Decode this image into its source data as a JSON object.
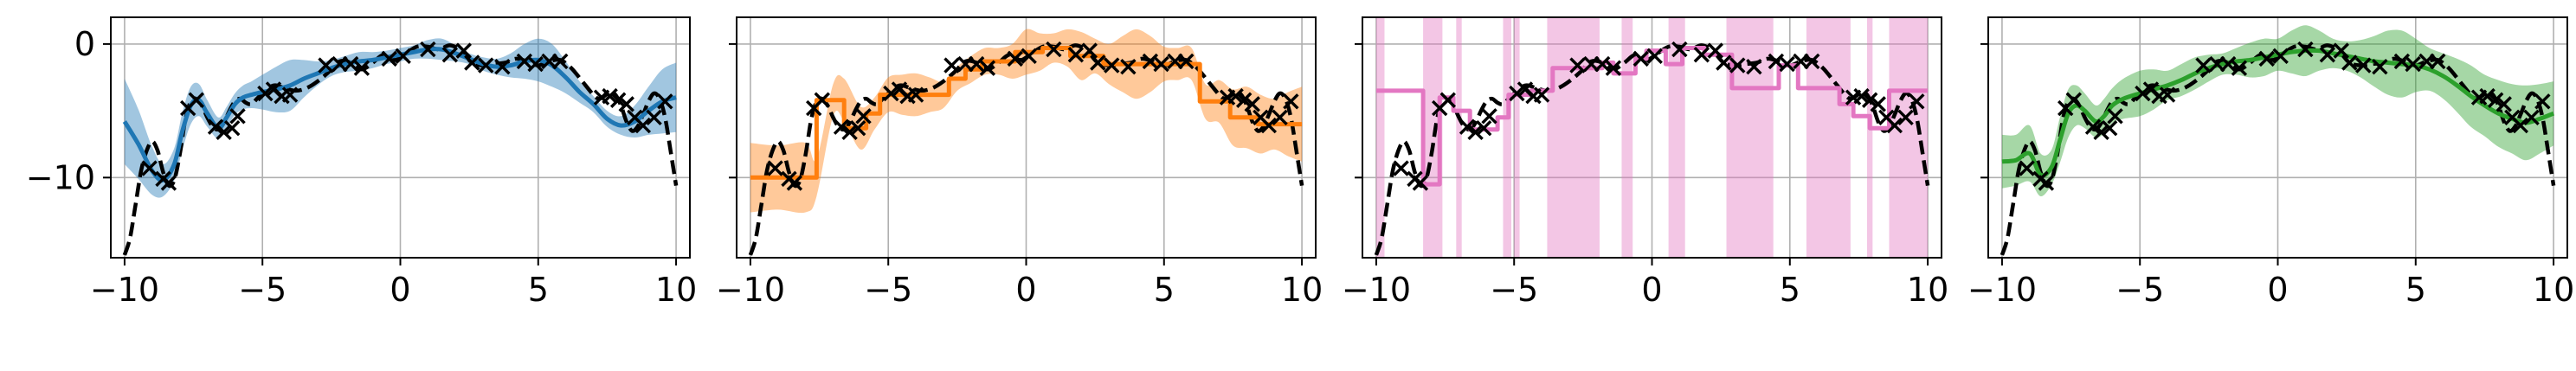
{
  "chart_data": [
    {
      "type": "line",
      "xlim": [
        -10.5,
        10.5
      ],
      "ylim": [
        -16,
        2
      ],
      "xticks": [
        -10,
        -5,
        0,
        5,
        10
      ],
      "yticks": [
        0,
        -10
      ],
      "grid": true,
      "show_yticklabels": true,
      "color": "#1f77b4",
      "band_color": "#1f77b4",
      "prediction": {
        "x": [
          -10,
          -9.5,
          -9,
          -8.6,
          -8.2,
          -7.9,
          -7.6,
          -7.3,
          -7,
          -6.6,
          -6.3,
          -6,
          -5.7,
          -5.4,
          -5,
          -4.5,
          -4,
          -3.5,
          -3,
          -2.5,
          -2,
          -1.5,
          -1,
          -0.5,
          0,
          0.5,
          1,
          1.5,
          2,
          2.5,
          3,
          3.5,
          4,
          4.5,
          5,
          5.5,
          6,
          6.5,
          7,
          7.5,
          8,
          8.5,
          9,
          9.5,
          10
        ],
        "y": [
          -5.8,
          -7.5,
          -9.5,
          -10.2,
          -9,
          -6.5,
          -4.6,
          -4.2,
          -5.2,
          -6.3,
          -5.5,
          -4.5,
          -4,
          -3.8,
          -3.6,
          -3.4,
          -3.1,
          -2.6,
          -2.2,
          -1.8,
          -1.5,
          -1.3,
          -1.2,
          -1,
          -0.8,
          -0.6,
          -0.4,
          -0.4,
          -0.7,
          -1.1,
          -1.5,
          -1.7,
          -1.6,
          -1.3,
          -1.2,
          -1.6,
          -2.5,
          -3.6,
          -4.5,
          -5.6,
          -6.1,
          -5.8,
          -5,
          -4.3,
          -4
        ]
      },
      "band_halfwidth": [
        3.2,
        2.6,
        1.8,
        1.2,
        1.2,
        1.4,
        1.4,
        1.2,
        1,
        0.8,
        0.8,
        0.8,
        0.9,
        1,
        1.3,
        1.7,
        1.9,
        1.4,
        0.9,
        0.6,
        0.6,
        0.7,
        0.6,
        0.5,
        0.5,
        0.5,
        0.7,
        0.8,
        0.6,
        0.4,
        0.5,
        0.6,
        0.9,
        1.3,
        1.6,
        1.6,
        1.2,
        0.8,
        0.6,
        0.6,
        0.7,
        1.2,
        1.8,
        2.4,
        2.6
      ]
    },
    {
      "type": "line",
      "xlim": [
        -10.5,
        10.5
      ],
      "ylim": [
        -16,
        2
      ],
      "xticks": [
        -10,
        -5,
        0,
        5,
        10
      ],
      "yticks": [
        0,
        -10
      ],
      "grid": true,
      "show_yticklabels": false,
      "color": "#ff7f0e",
      "band_color": "#ff7f0e",
      "prediction": {
        "x": [
          -10,
          -7.6,
          -7.6,
          -6.6,
          -6.6,
          -5.8,
          -5.8,
          -5.3,
          -5.3,
          -2.8,
          -2.8,
          -2.2,
          -2.2,
          -1.6,
          -1.6,
          -0.4,
          -0.4,
          0.6,
          0.6,
          1.6,
          1.6,
          2.8,
          2.8,
          6.3,
          6.3,
          7.4,
          7.4,
          8.4,
          8.4,
          10
        ],
        "y": [
          -10,
          -10,
          -4.2,
          -4.2,
          -6.3,
          -6.3,
          -5.2,
          -5.2,
          -3.8,
          -3.8,
          -2.6,
          -2.6,
          -1.9,
          -1.9,
          -1.3,
          -1.3,
          -0.6,
          -0.6,
          -0.3,
          -0.3,
          -0.9,
          -0.9,
          -1.5,
          -1.5,
          -4.3,
          -4.3,
          -5.5,
          -5.5,
          -6,
          -6
        ]
      },
      "band": {
        "x": [
          -10,
          -9,
          -8,
          -7.6,
          -7,
          -6.6,
          -6,
          -5.5,
          -5,
          -4.5,
          -4,
          -3.5,
          -3,
          -2.5,
          -2,
          -1.5,
          -1,
          -0.5,
          0,
          0.5,
          1,
          1.5,
          2,
          2.5,
          3,
          3.5,
          4,
          4.5,
          5,
          5.5,
          6,
          6.5,
          7,
          7.5,
          8,
          8.5,
          9,
          9.5,
          10
        ],
        "halfwidth": [
          2.6,
          2.4,
          2.6,
          1.4,
          1.2,
          1.6,
          1.6,
          1.2,
          1.3,
          1.5,
          1.6,
          1.3,
          1,
          0.9,
          1,
          1,
          1,
          1.3,
          1.7,
          1.4,
          1.1,
          1.4,
          1.8,
          1.3,
          1.5,
          2.1,
          2.6,
          2.1,
          1.3,
          1.2,
          1.2,
          1.3,
          1.6,
          2.1,
          2.3,
          2.2,
          1.9,
          2.4,
          2.8
        ]
      }
    },
    {
      "type": "line",
      "xlim": [
        -10.5,
        10.5
      ],
      "ylim": [
        -16,
        2
      ],
      "xticks": [
        -10,
        -5,
        0,
        5,
        10
      ],
      "yticks": [
        0,
        -10
      ],
      "grid": true,
      "show_yticklabels": false,
      "color": "#e377c2",
      "band_color": "#e377c2",
      "prediction": {
        "x": [
          -10,
          -8.3,
          -8.3,
          -7.7,
          -7.7,
          -7.2,
          -7.2,
          -6.6,
          -6.6,
          -5.6,
          -5.6,
          -5.2,
          -5.2,
          -4.4,
          -4.4,
          -3.6,
          -3.6,
          -1.8,
          -1.8,
          -1.4,
          -1.4,
          -0.6,
          -0.6,
          -0.2,
          -0.2,
          0.5,
          0.5,
          1.1,
          1.1,
          1.9,
          1.9,
          2.9,
          2.9,
          4.6,
          4.6,
          5.3,
          5.3,
          6.8,
          6.8,
          7.3,
          7.3,
          7.9,
          7.9,
          8.6,
          8.6,
          10
        ],
        "y": [
          -3.5,
          -3.5,
          -10.5,
          -10.5,
          -4,
          -4,
          -5,
          -5,
          -6.4,
          -6.4,
          -5.5,
          -5.5,
          -3.8,
          -3.8,
          -3.5,
          -3.5,
          -1.8,
          -1.8,
          -1.4,
          -1.4,
          -2.2,
          -2.2,
          -1.1,
          -1.1,
          -0.5,
          -0.5,
          -1.5,
          -1.5,
          -0.3,
          -0.3,
          -0.8,
          -0.8,
          -3.3,
          -3.3,
          -1.6,
          -1.6,
          -3.3,
          -3.3,
          -4.5,
          -4.5,
          -5.4,
          -5.4,
          -6.3,
          -6.3,
          -3.5,
          -3.5
        ]
      },
      "bands": [
        {
          "x0": -10,
          "x1": -9.7
        },
        {
          "x0": -8.3,
          "x1": -7.6
        },
        {
          "x0": -7.1,
          "x1": -6.9
        },
        {
          "x0": -5.4,
          "x1": -5.1
        },
        {
          "x0": -5,
          "x1": -4.8
        },
        {
          "x0": -3.8,
          "x1": -1.9
        },
        {
          "x0": -1.1,
          "x1": -0.7
        },
        {
          "x0": 0.6,
          "x1": 1.2
        },
        {
          "x0": 2.7,
          "x1": 4.4
        },
        {
          "x0": 5.6,
          "x1": 7.2
        },
        {
          "x0": 7.8,
          "x1": 8
        },
        {
          "x0": 8.6,
          "x1": 10
        }
      ]
    },
    {
      "type": "line",
      "xlim": [
        -10.5,
        10.5
      ],
      "ylim": [
        -16,
        2
      ],
      "xticks": [
        -10,
        -5,
        0,
        5,
        10
      ],
      "yticks": [
        0,
        -10
      ],
      "grid": true,
      "show_yticklabels": false,
      "color": "#2ca02c",
      "band_color": "#2ca02c",
      "prediction": {
        "x": [
          -10,
          -9.5,
          -9,
          -8.6,
          -8.2,
          -7.9,
          -7.6,
          -7.3,
          -7,
          -6.6,
          -6.3,
          -6,
          -5.6,
          -5,
          -4.5,
          -4,
          -3.5,
          -3,
          -2.5,
          -2,
          -1.5,
          -1,
          -0.5,
          0,
          0.5,
          1,
          1.5,
          2,
          2.5,
          3,
          3.5,
          4,
          4.5,
          5,
          5.5,
          6,
          6.5,
          7,
          7.5,
          8,
          8.5,
          9,
          9.5,
          10
        ],
        "y": [
          -8.8,
          -8.7,
          -8.2,
          -9.8,
          -9.2,
          -7.2,
          -5.2,
          -4.6,
          -5,
          -5.8,
          -5.4,
          -4.6,
          -4.1,
          -3.7,
          -3.4,
          -3.1,
          -2.7,
          -2.2,
          -1.8,
          -1.5,
          -1.3,
          -1.2,
          -1,
          -0.8,
          -0.6,
          -0.5,
          -0.5,
          -0.7,
          -0.9,
          -1.1,
          -1.3,
          -1.4,
          -1.5,
          -1.6,
          -1.9,
          -2.4,
          -3.1,
          -3.9,
          -4.6,
          -5.2,
          -5.6,
          -5.9,
          -5.6,
          -5.2
        ]
      },
      "band_halfwidth": [
        2,
        1.9,
        2.1,
        1.6,
        1.3,
        1.7,
        1.8,
        1.5,
        1.3,
        1.2,
        1.3,
        1.3,
        1.5,
        1.7,
        1.5,
        1.1,
        1.2,
        1.2,
        1,
        0.8,
        1,
        1.3,
        1.4,
        1.2,
        1.6,
        1.9,
        1.5,
        1.1,
        1.1,
        1.4,
        1.9,
        2.4,
        2.5,
        2,
        1.6,
        1.7,
        2,
        2.3,
        2.3,
        2.5,
        2.6,
        2.8,
        2.6,
        2.4
      ]
    }
  ],
  "ground_truth": {
    "x": [
      -10,
      -9.8,
      -9.6,
      -9.4,
      -9.2,
      -9,
      -8.8,
      -8.6,
      -8.4,
      -8.2,
      -8,
      -7.8,
      -7.6,
      -7.4,
      -7.2,
      -7,
      -6.8,
      -6.6,
      -6.4,
      -6.2,
      -6,
      -5.8,
      -5.6,
      -5.4,
      -5.2,
      -5,
      -4.6,
      -4.2,
      -3.8,
      -3.4,
      -3,
      -2.6,
      -2.2,
      -1.8,
      -1.4,
      -1,
      -0.6,
      -0.2,
      0.2,
      0.6,
      1,
      1.4,
      1.8,
      2.2,
      2.6,
      3,
      3.4,
      3.8,
      4.2,
      4.6,
      5,
      5.4,
      5.8,
      6.2,
      6.6,
      7,
      7.2,
      7.4,
      7.6,
      7.8,
      8,
      8.2,
      8.4,
      8.6,
      8.8,
      9,
      9.2,
      9.4,
      9.6,
      9.8,
      10
    ],
    "y": [
      -15.8,
      -14.5,
      -12,
      -9.5,
      -8,
      -7.3,
      -8,
      -9.6,
      -10.6,
      -10.2,
      -8.3,
      -5.7,
      -4.3,
      -4.1,
      -4.6,
      -5.5,
      -6.2,
      -6.4,
      -5.9,
      -5,
      -4.3,
      -4.1,
      -4.4,
      -4.5,
      -4.1,
      -3.7,
      -3.1,
      -3.3,
      -3.5,
      -3.3,
      -2.8,
      -2.1,
      -1.3,
      -1.4,
      -1.9,
      -1.4,
      -0.8,
      -1.2,
      -0.7,
      -0.2,
      -0.2,
      -0.4,
      -0.1,
      -0.5,
      -1.4,
      -1.6,
      -1.5,
      -1.4,
      -1.1,
      -1.3,
      -1.6,
      -1.3,
      -1.2,
      -1.8,
      -2.8,
      -3.8,
      -4.1,
      -3.9,
      -3.6,
      -3.8,
      -4.6,
      -5.8,
      -6.5,
      -6.2,
      -5.3,
      -4.3,
      -3.7,
      -4.1,
      -5.5,
      -8,
      -10.6
    ]
  },
  "observations": {
    "x": [
      -9.1,
      -8.6,
      -8.4,
      -7.7,
      -7.4,
      -6.7,
      -6.4,
      -6.1,
      -5.9,
      -4.9,
      -4.6,
      -4.3,
      -4,
      -2.7,
      -2.2,
      -1.8,
      -1.4,
      -0.4,
      0.1,
      1,
      1.8,
      2.3,
      2.6,
      3.1,
      3.7,
      4.5,
      4.9,
      5.4,
      5.8,
      7.3,
      7.6,
      7.9,
      8.2,
      8.5,
      8.8,
      9.2,
      9.6
    ],
    "y": [
      -9.3,
      -10.1,
      -10.4,
      -4.8,
      -4.2,
      -6.2,
      -6.6,
      -6.3,
      -5.4,
      -3.7,
      -3.4,
      -3.9,
      -3.8,
      -1.6,
      -1.5,
      -1.5,
      -1.8,
      -1.1,
      -0.9,
      -0.4,
      -0.8,
      -0.5,
      -1.4,
      -1.6,
      -1.7,
      -1.3,
      -1.5,
      -1.3,
      -1.3,
      -4,
      -3.9,
      -4.2,
      -4.5,
      -5.5,
      -6.1,
      -5.5,
      -4.3
    ]
  }
}
